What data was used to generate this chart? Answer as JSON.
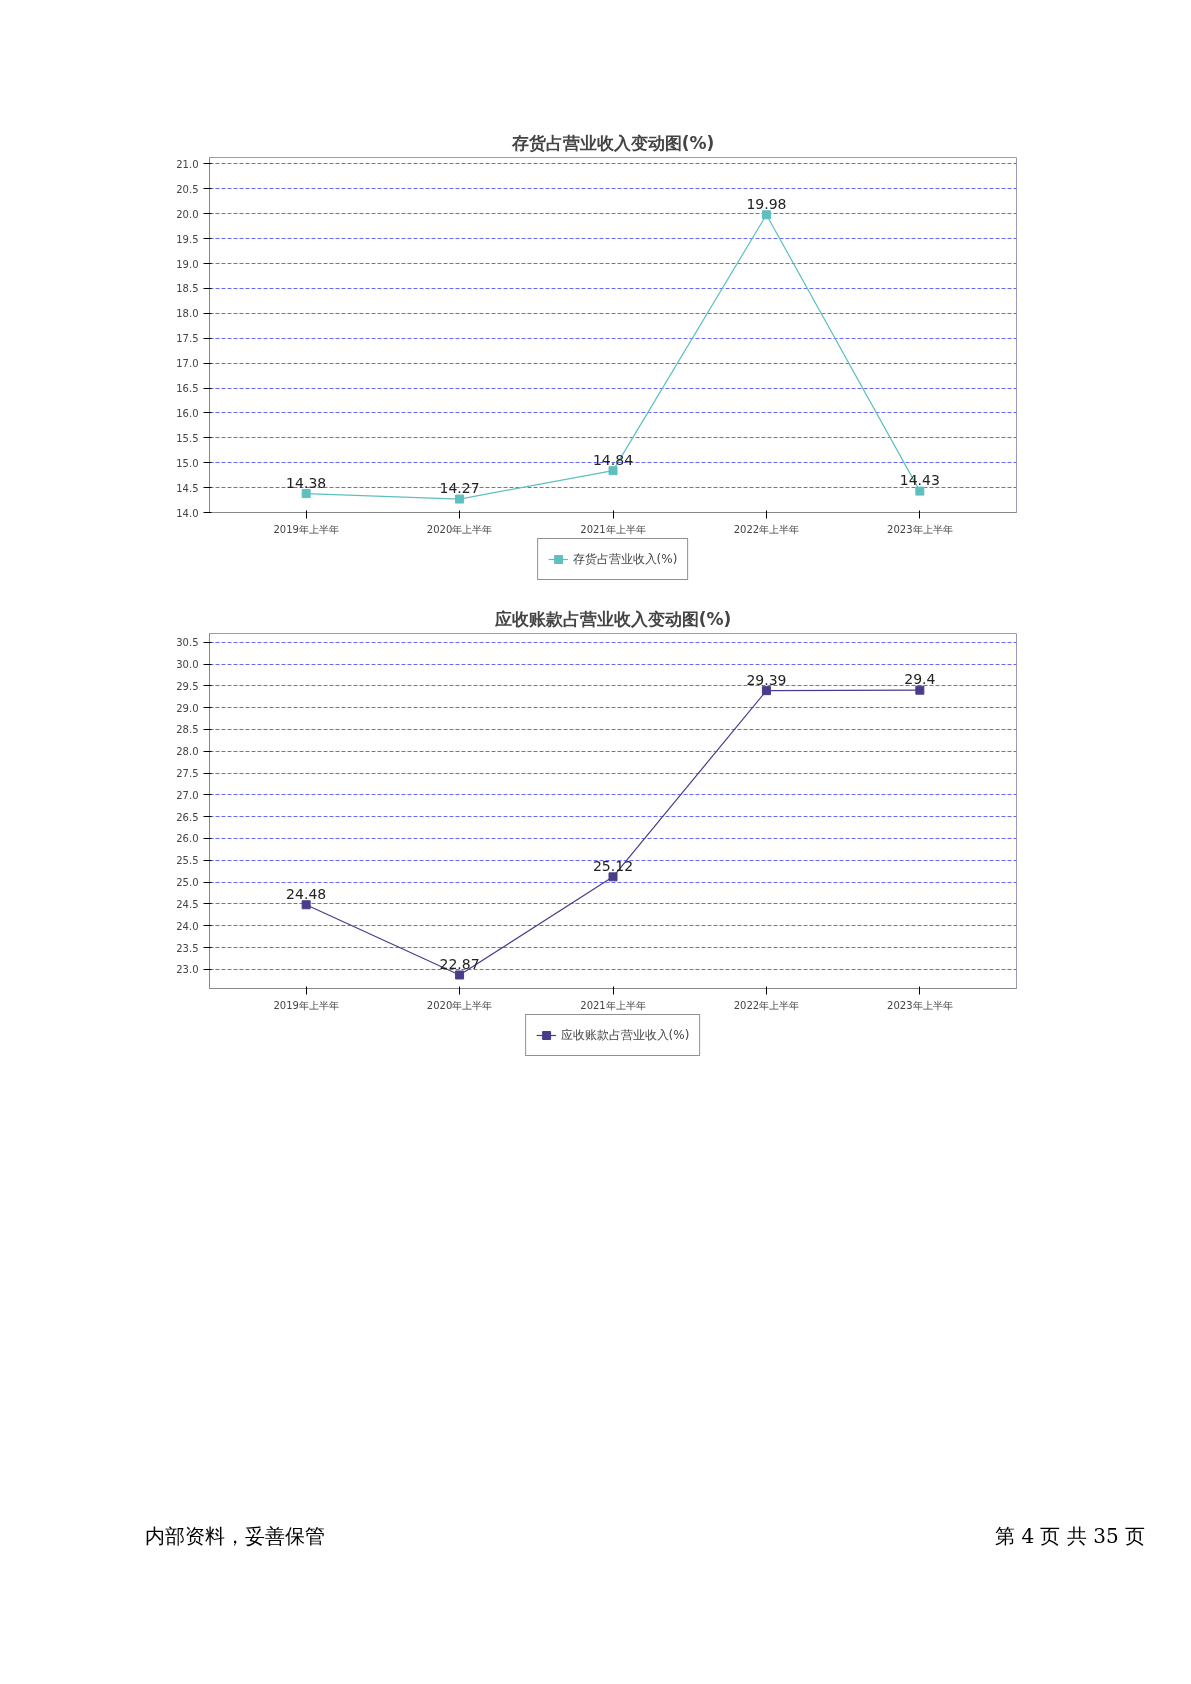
{
  "chart_data": [
    {
      "type": "line",
      "title": "存货占营业收入变动图(%)",
      "categories": [
        "2019年上半年",
        "2020年上半年",
        "2021年上半年",
        "2022年上半年",
        "2023年上半年"
      ],
      "series": [
        {
          "name": "存货占营业收入(%)",
          "color": "#5fbfbf",
          "values": [
            14.38,
            14.27,
            14.84,
            19.98,
            14.43
          ]
        }
      ],
      "ylim": [
        14.0,
        21.13
      ],
      "yticks": [
        {
          "value": 14.0,
          "label": "14.0"
        },
        {
          "value": 14.5,
          "label": "14.5"
        },
        {
          "value": 15.0,
          "label": "15.0"
        },
        {
          "value": 15.5,
          "label": "15.5"
        },
        {
          "value": 16.0,
          "label": "16.0"
        },
        {
          "value": 16.5,
          "label": "16.5"
        },
        {
          "value": 17.0,
          "label": "17.0"
        },
        {
          "value": 17.5,
          "label": "17.5"
        },
        {
          "value": 18.0,
          "label": "18.0"
        },
        {
          "value": 18.5,
          "label": "18.5"
        },
        {
          "value": 19.0,
          "label": "19.0"
        },
        {
          "value": 19.5,
          "label": "19.5"
        },
        {
          "value": 20.0,
          "label": "20.0"
        },
        {
          "value": 20.5,
          "label": "20.5"
        },
        {
          "value": 21.0,
          "label": "21.0"
        }
      ],
      "grid": "y",
      "legend": "bottom",
      "marker": "square",
      "line_style": "solid",
      "data_labels": true
    },
    {
      "type": "line",
      "title": "应收账款占营业收入变动图(%)",
      "categories": [
        "2019年上半年",
        "2020年上半年",
        "2021年上半年",
        "2022年上半年",
        "2023年上半年"
      ],
      "series": [
        {
          "name": "应收账款占营业收入(%)",
          "color": "#483d8b",
          "values": [
            24.48,
            22.87,
            25.12,
            29.39,
            29.4
          ]
        }
      ],
      "ylim": [
        22.56,
        30.7
      ],
      "yticks": [
        {
          "value": 23.0,
          "label": "23.0"
        },
        {
          "value": 23.5,
          "label": "23.5"
        },
        {
          "value": 24.0,
          "label": "24.0"
        },
        {
          "value": 24.5,
          "label": "24.5"
        },
        {
          "value": 25.0,
          "label": "25.0"
        },
        {
          "value": 25.5,
          "label": "25.5"
        },
        {
          "value": 26.0,
          "label": "26.0"
        },
        {
          "value": 26.5,
          "label": "26.5"
        },
        {
          "value": 27.0,
          "label": "27.0"
        },
        {
          "value": 27.5,
          "label": "27.5"
        },
        {
          "value": 28.0,
          "label": "28.0"
        },
        {
          "value": 28.5,
          "label": "28.5"
        },
        {
          "value": 29.0,
          "label": "29.0"
        },
        {
          "value": 29.5,
          "label": "29.5"
        },
        {
          "value": 30.0,
          "label": "30.0"
        },
        {
          "value": 30.5,
          "label": "30.5"
        }
      ],
      "grid": "y",
      "legend": "bottom",
      "marker": "square",
      "line_style": "solid",
      "data_labels": true,
      "annotations": [
        "内部资料，妥善保管",
        "第 4 页   共 35 页"
      ]
    }
  ]
}
